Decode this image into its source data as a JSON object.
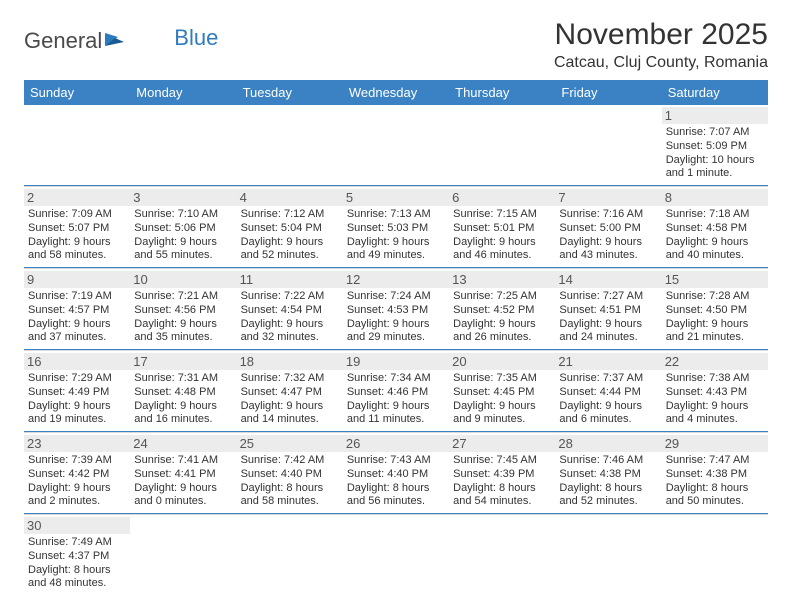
{
  "brand": {
    "part1": "General",
    "part2": "Blue"
  },
  "title": "November 2025",
  "location": "Catcau, Cluj County, Romania",
  "header_bg": "#3a82c4",
  "days": [
    "Sunday",
    "Monday",
    "Tuesday",
    "Wednesday",
    "Thursday",
    "Friday",
    "Saturday"
  ],
  "weeks": [
    [
      null,
      null,
      null,
      null,
      null,
      null,
      {
        "n": "1",
        "sr": "Sunrise: 7:07 AM",
        "ss": "Sunset: 5:09 PM",
        "dl": "Daylight: 10 hours and 1 minute."
      }
    ],
    [
      {
        "n": "2",
        "sr": "Sunrise: 7:09 AM",
        "ss": "Sunset: 5:07 PM",
        "dl": "Daylight: 9 hours and 58 minutes."
      },
      {
        "n": "3",
        "sr": "Sunrise: 7:10 AM",
        "ss": "Sunset: 5:06 PM",
        "dl": "Daylight: 9 hours and 55 minutes."
      },
      {
        "n": "4",
        "sr": "Sunrise: 7:12 AM",
        "ss": "Sunset: 5:04 PM",
        "dl": "Daylight: 9 hours and 52 minutes."
      },
      {
        "n": "5",
        "sr": "Sunrise: 7:13 AM",
        "ss": "Sunset: 5:03 PM",
        "dl": "Daylight: 9 hours and 49 minutes."
      },
      {
        "n": "6",
        "sr": "Sunrise: 7:15 AM",
        "ss": "Sunset: 5:01 PM",
        "dl": "Daylight: 9 hours and 46 minutes."
      },
      {
        "n": "7",
        "sr": "Sunrise: 7:16 AM",
        "ss": "Sunset: 5:00 PM",
        "dl": "Daylight: 9 hours and 43 minutes."
      },
      {
        "n": "8",
        "sr": "Sunrise: 7:18 AM",
        "ss": "Sunset: 4:58 PM",
        "dl": "Daylight: 9 hours and 40 minutes."
      }
    ],
    [
      {
        "n": "9",
        "sr": "Sunrise: 7:19 AM",
        "ss": "Sunset: 4:57 PM",
        "dl": "Daylight: 9 hours and 37 minutes."
      },
      {
        "n": "10",
        "sr": "Sunrise: 7:21 AM",
        "ss": "Sunset: 4:56 PM",
        "dl": "Daylight: 9 hours and 35 minutes."
      },
      {
        "n": "11",
        "sr": "Sunrise: 7:22 AM",
        "ss": "Sunset: 4:54 PM",
        "dl": "Daylight: 9 hours and 32 minutes."
      },
      {
        "n": "12",
        "sr": "Sunrise: 7:24 AM",
        "ss": "Sunset: 4:53 PM",
        "dl": "Daylight: 9 hours and 29 minutes."
      },
      {
        "n": "13",
        "sr": "Sunrise: 7:25 AM",
        "ss": "Sunset: 4:52 PM",
        "dl": "Daylight: 9 hours and 26 minutes."
      },
      {
        "n": "14",
        "sr": "Sunrise: 7:27 AM",
        "ss": "Sunset: 4:51 PM",
        "dl": "Daylight: 9 hours and 24 minutes."
      },
      {
        "n": "15",
        "sr": "Sunrise: 7:28 AM",
        "ss": "Sunset: 4:50 PM",
        "dl": "Daylight: 9 hours and 21 minutes."
      }
    ],
    [
      {
        "n": "16",
        "sr": "Sunrise: 7:29 AM",
        "ss": "Sunset: 4:49 PM",
        "dl": "Daylight: 9 hours and 19 minutes."
      },
      {
        "n": "17",
        "sr": "Sunrise: 7:31 AM",
        "ss": "Sunset: 4:48 PM",
        "dl": "Daylight: 9 hours and 16 minutes."
      },
      {
        "n": "18",
        "sr": "Sunrise: 7:32 AM",
        "ss": "Sunset: 4:47 PM",
        "dl": "Daylight: 9 hours and 14 minutes."
      },
      {
        "n": "19",
        "sr": "Sunrise: 7:34 AM",
        "ss": "Sunset: 4:46 PM",
        "dl": "Daylight: 9 hours and 11 minutes."
      },
      {
        "n": "20",
        "sr": "Sunrise: 7:35 AM",
        "ss": "Sunset: 4:45 PM",
        "dl": "Daylight: 9 hours and 9 minutes."
      },
      {
        "n": "21",
        "sr": "Sunrise: 7:37 AM",
        "ss": "Sunset: 4:44 PM",
        "dl": "Daylight: 9 hours and 6 minutes."
      },
      {
        "n": "22",
        "sr": "Sunrise: 7:38 AM",
        "ss": "Sunset: 4:43 PM",
        "dl": "Daylight: 9 hours and 4 minutes."
      }
    ],
    [
      {
        "n": "23",
        "sr": "Sunrise: 7:39 AM",
        "ss": "Sunset: 4:42 PM",
        "dl": "Daylight: 9 hours and 2 minutes."
      },
      {
        "n": "24",
        "sr": "Sunrise: 7:41 AM",
        "ss": "Sunset: 4:41 PM",
        "dl": "Daylight: 9 hours and 0 minutes."
      },
      {
        "n": "25",
        "sr": "Sunrise: 7:42 AM",
        "ss": "Sunset: 4:40 PM",
        "dl": "Daylight: 8 hours and 58 minutes."
      },
      {
        "n": "26",
        "sr": "Sunrise: 7:43 AM",
        "ss": "Sunset: 4:40 PM",
        "dl": "Daylight: 8 hours and 56 minutes."
      },
      {
        "n": "27",
        "sr": "Sunrise: 7:45 AM",
        "ss": "Sunset: 4:39 PM",
        "dl": "Daylight: 8 hours and 54 minutes."
      },
      {
        "n": "28",
        "sr": "Sunrise: 7:46 AM",
        "ss": "Sunset: 4:38 PM",
        "dl": "Daylight: 8 hours and 52 minutes."
      },
      {
        "n": "29",
        "sr": "Sunrise: 7:47 AM",
        "ss": "Sunset: 4:38 PM",
        "dl": "Daylight: 8 hours and 50 minutes."
      }
    ],
    [
      {
        "n": "30",
        "sr": "Sunrise: 7:49 AM",
        "ss": "Sunset: 4:37 PM",
        "dl": "Daylight: 8 hours and 48 minutes."
      },
      null,
      null,
      null,
      null,
      null,
      null
    ]
  ]
}
